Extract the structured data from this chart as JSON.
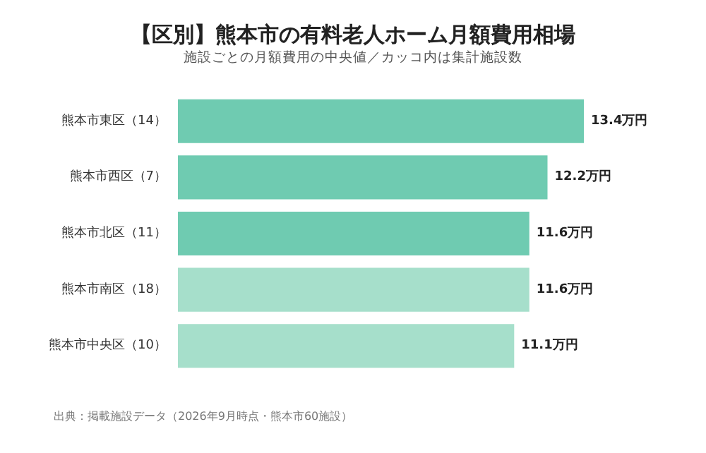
{
  "chart_data": {
    "type": "bar",
    "orientation": "horizontal",
    "title": "【区別】熊本市の有料老人ホーム月額費用相場",
    "subtitle": "施設ごとの月額費用の中央値／カッコ内は集計施設数",
    "categories": [
      "熊本市東区（14）",
      "熊本市西区（7）",
      "熊本市北区（11）",
      "熊本市南区（18）",
      "熊本市中央区（10）"
    ],
    "values": [
      13.4,
      12.2,
      11.6,
      11.6,
      11.1
    ],
    "colors": [
      "#6fcbb1",
      "#6fcbb1",
      "#6fcbb1",
      "#a6dfcb",
      "#a6dfcb"
    ],
    "value_labels": [
      "13.4万円",
      "12.2万円",
      "11.6万円",
      "11.6万円",
      "11.1万円"
    ],
    "annotations": [
      "出典：掲載施設データ（2026年9月時点・熊本市60施設）"
    ]
  }
}
